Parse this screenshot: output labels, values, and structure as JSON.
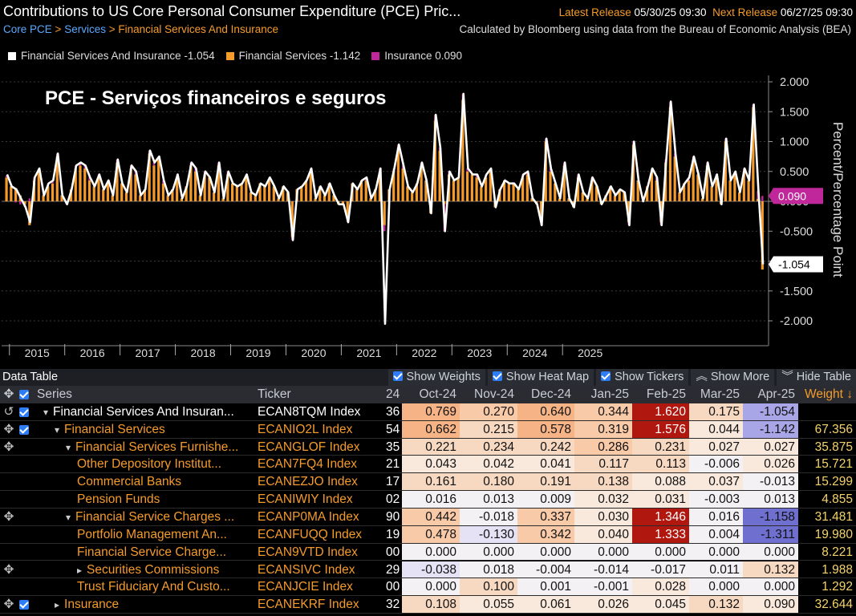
{
  "header": {
    "title": "Contributions to US Core Personal Consumer Expenditure (PCE) Pric...",
    "latest_label": "Latest Release",
    "latest_value": "05/30/25 09:30",
    "next_label": "Next Release",
    "next_value": "06/27/25 09:30",
    "breadcrumb": [
      "Core PCE",
      "Services",
      "Financial Services And Insurance"
    ],
    "source": "Calculated by Bloomberg using data from the Bureau of Economic Analysis (BEA)"
  },
  "legend": [
    {
      "label": "Financial Services And Insurance -1.054",
      "color": "#ffffff"
    },
    {
      "label": "Financial Services -1.142",
      "color": "#f59b2b"
    },
    {
      "label": "Insurance 0.090",
      "color": "#c0279a"
    }
  ],
  "chart_data": {
    "type": "bar",
    "title": "PCE - Serviços financeiros e seguros",
    "ylabel": "Percent/Percentage Point",
    "ylim": [
      -2.5,
      2.2
    ],
    "yticks": [
      "2.000",
      "1.500",
      "1.000",
      "0.500",
      "0.000",
      "-0.500",
      "-1.000",
      "-1.500",
      "-2.000"
    ],
    "ytick_values": [
      2,
      1.5,
      1,
      0.5,
      0,
      -0.5,
      -1,
      -1.5,
      -2
    ],
    "xticks": [
      "2015",
      "2016",
      "2017",
      "2018",
      "2019",
      "2020",
      "2021",
      "2022",
      "2023",
      "2024",
      "2025"
    ],
    "months_start": "2014-12",
    "series": [
      {
        "name": "Financial Services And Insurance",
        "kind": "line",
        "color": "#ffffff",
        "values": [
          0.45,
          0.25,
          0.2,
          0.05,
          -0.1,
          -0.35,
          0.4,
          0.55,
          0.1,
          0.3,
          0.35,
          0.8,
          0.1,
          -0.05,
          0.2,
          0.6,
          0.65,
          0.6,
          0.4,
          0.25,
          0.45,
          0.2,
          0.35,
          0.1,
          0.7,
          0.3,
          0.15,
          0.6,
          0.5,
          0.1,
          0.2,
          0.85,
          0.65,
          0.75,
          0.35,
          0.1,
          0.2,
          0.45,
          0.05,
          0.25,
          0.65,
          0.55,
          0.1,
          0.5,
          0.4,
          0.15,
          0.65,
          0.05,
          0.5,
          0.3,
          0.25,
          0.3,
          0.45,
          0.15,
          0.1,
          0.3,
          0.25,
          0.4,
          0.25,
          0.05,
          0.25,
          0.15,
          -0.65,
          0.2,
          0.25,
          0.35,
          0.55,
          0.05,
          0.25,
          0.1,
          0.3,
          0.1,
          -0.05,
          -0.05,
          -0.35,
          0.3,
          0.2,
          0.35,
          0.4,
          0.05,
          0.2,
          0.55,
          -2.05,
          0.2,
          0.55,
          0.95,
          0.6,
          0.25,
          0.15,
          0.3,
          0.65,
          0.35,
          -0.2,
          1.45,
          0.9,
          -0.5,
          0.5,
          0.35,
          0.4,
          1.8,
          0.55,
          0.45,
          0.45,
          0.25,
          0.45,
          0.55,
          -0.1,
          0.2,
          0.35,
          0.3,
          0.3,
          0.2,
          0.45,
          0.5,
          0.05,
          -0.05,
          -0.4,
          1.05,
          0.55,
          0.3,
          0.05,
          0.65,
          0.05,
          -0.1,
          0.45,
          0.15,
          0.05,
          0.4,
          0.25,
          -0.05,
          0.1,
          0.25,
          0.1,
          0.2,
          0.15,
          -0.4,
          1.0,
          0.35,
          0.0,
          0.25,
          0.55,
          0.4,
          -0.4,
          0.7,
          1.67,
          0.8,
          0.15,
          0.3,
          0.4,
          0.75,
          0.45,
          0.05,
          0.65,
          0.25,
          0.45,
          -0.05,
          1.05,
          0.35,
          0.5,
          0.15,
          0.55,
          0.35,
          1.62,
          0.18,
          -1.054
        ]
      },
      {
        "name": "Financial Services",
        "kind": "bar",
        "color": "#f59b2b",
        "values": [
          0.4,
          0.25,
          0.22,
          0.1,
          -0.05,
          -0.4,
          0.35,
          0.5,
          0.1,
          0.25,
          0.3,
          0.75,
          0.1,
          0.0,
          0.2,
          0.55,
          0.6,
          0.55,
          0.35,
          0.25,
          0.4,
          0.2,
          0.3,
          0.1,
          0.65,
          0.3,
          0.15,
          0.55,
          0.45,
          0.1,
          0.2,
          0.8,
          0.6,
          0.7,
          0.3,
          0.1,
          0.2,
          0.4,
          0.05,
          0.25,
          0.6,
          0.5,
          0.1,
          0.45,
          0.4,
          0.15,
          0.6,
          0.05,
          0.45,
          0.3,
          0.25,
          0.3,
          0.4,
          0.15,
          0.1,
          0.3,
          0.25,
          0.35,
          0.25,
          0.05,
          0.25,
          0.15,
          -0.6,
          0.2,
          0.25,
          0.35,
          0.5,
          0.05,
          0.25,
          0.1,
          0.3,
          0.1,
          -0.05,
          -0.05,
          -0.3,
          0.3,
          0.2,
          0.35,
          0.35,
          0.05,
          0.2,
          0.5,
          -0.4,
          0.2,
          0.5,
          0.9,
          0.55,
          0.25,
          0.15,
          0.3,
          0.6,
          0.35,
          -0.2,
          1.35,
          0.85,
          -0.05,
          0.45,
          0.35,
          0.4,
          1.7,
          0.5,
          0.45,
          0.4,
          0.25,
          0.4,
          0.5,
          -0.1,
          0.2,
          0.35,
          0.3,
          0.3,
          0.2,
          0.4,
          0.45,
          0.05,
          -0.05,
          -0.35,
          1.0,
          0.5,
          0.3,
          0.05,
          0.6,
          0.05,
          -0.1,
          0.4,
          0.15,
          0.05,
          0.35,
          0.25,
          -0.05,
          0.1,
          0.25,
          0.1,
          0.2,
          0.15,
          -0.35,
          0.95,
          0.35,
          0.0,
          0.25,
          0.5,
          0.35,
          -0.35,
          0.65,
          1.576,
          0.75,
          0.15,
          0.3,
          0.35,
          0.7,
          0.45,
          0.05,
          0.6,
          0.25,
          0.4,
          -0.05,
          1.0,
          0.35,
          0.45,
          0.15,
          0.5,
          0.35,
          1.576,
          0.044,
          -1.142
        ]
      },
      {
        "name": "Insurance",
        "kind": "bar",
        "color": "#c0279a",
        "values": [
          0.03,
          0.0,
          -0.02,
          -0.05,
          -0.05,
          0.05,
          0.05,
          0.05,
          0.0,
          0.05,
          0.05,
          0.05,
          0.0,
          -0.05,
          0.0,
          0.05,
          0.05,
          0.05,
          0.05,
          0.0,
          0.05,
          0.0,
          0.05,
          0.0,
          0.05,
          0.0,
          0.0,
          0.05,
          0.05,
          0.0,
          0.0,
          0.05,
          0.05,
          0.05,
          0.05,
          0.0,
          0.0,
          0.05,
          0.0,
          0.0,
          0.05,
          0.05,
          0.0,
          0.05,
          0.0,
          0.0,
          0.05,
          0.0,
          0.05,
          0.0,
          0.0,
          0.0,
          0.05,
          0.0,
          0.0,
          0.0,
          0.0,
          0.05,
          0.0,
          0.0,
          0.0,
          0.0,
          -0.05,
          0.0,
          0.0,
          0.0,
          0.05,
          0.0,
          0.0,
          0.0,
          0.0,
          0.0,
          0.0,
          0.0,
          -0.05,
          0.0,
          0.0,
          0.0,
          0.05,
          0.0,
          0.0,
          0.05,
          -0.1,
          0.0,
          0.05,
          0.05,
          0.05,
          0.0,
          0.0,
          0.0,
          0.05,
          0.0,
          0.0,
          0.1,
          0.05,
          -0.45,
          0.05,
          0.0,
          0.0,
          0.1,
          0.05,
          0.0,
          0.05,
          0.0,
          0.05,
          0.05,
          0.0,
          0.0,
          0.0,
          0.0,
          0.0,
          0.0,
          0.05,
          0.05,
          0.0,
          0.0,
          -0.05,
          0.05,
          0.05,
          0.0,
          0.0,
          0.05,
          0.0,
          0.0,
          0.05,
          0.0,
          0.0,
          0.05,
          0.0,
          0.0,
          0.0,
          0.0,
          0.0,
          0.0,
          0.0,
          -0.05,
          0.05,
          0.0,
          0.0,
          0.0,
          0.05,
          0.05,
          -0.05,
          0.05,
          0.09,
          0.05,
          0.0,
          0.0,
          0.05,
          0.05,
          0.0,
          0.0,
          0.05,
          0.0,
          0.05,
          0.0,
          0.05,
          0.0,
          0.05,
          0.0,
          0.05,
          0.0,
          0.045,
          0.132,
          0.09
        ]
      }
    ],
    "last_labels": [
      {
        "text": "0.090",
        "value": 0.09,
        "bg": "#c0279a",
        "fg": "#ffffff"
      },
      {
        "text": "-1.054",
        "value": -1.054,
        "bg": "#ffffff",
        "fg": "#000000"
      }
    ]
  },
  "table": {
    "title": "Data Table",
    "buttons": [
      {
        "label": "Show Weights",
        "checked": true
      },
      {
        "label": "Show Heat Map",
        "checked": true
      },
      {
        "label": "Show Tickers",
        "checked": true
      },
      {
        "label": "Show More",
        "checked": false,
        "icon": "chevrons-up-icon"
      },
      {
        "label": "Hide Table",
        "checked": false,
        "icon": "chevrons-down-icon"
      }
    ],
    "columns": {
      "series": "Series",
      "ticker": "Ticker",
      "partial": "24",
      "months": [
        "Oct-24",
        "Nov-24",
        "Dec-24",
        "Jan-25",
        "Feb-25",
        "Mar-25",
        "Apr-25"
      ],
      "weight": "Weight ↓"
    },
    "rows": [
      {
        "ctl": "↺",
        "chk": true,
        "indent": 0,
        "arrow": "▾",
        "series": "Financial Services And Insuran...",
        "ticker": "ECAN8TQM Index",
        "partial": "36",
        "values": [
          "0.769",
          "0.270",
          "0.640",
          "0.344",
          "1.620",
          "0.175",
          "-1.054"
        ],
        "weight": ""
      },
      {
        "ctl": "✥",
        "chk": true,
        "indent": 1,
        "arrow": "▾",
        "series": "Financial Services",
        "ticker": "ECANIO2L Index",
        "partial": "54",
        "values": [
          "0.662",
          "0.215",
          "0.578",
          "0.319",
          "1.576",
          "0.044",
          "-1.142"
        ],
        "weight": "67.356"
      },
      {
        "ctl": "✥",
        "chk": false,
        "indent": 2,
        "arrow": "▾",
        "series": "Financial Services Furnishe...",
        "ticker": "ECANGLOF Index",
        "partial": "35",
        "values": [
          "0.221",
          "0.234",
          "0.242",
          "0.286",
          "0.231",
          "0.027",
          "0.027"
        ],
        "weight": "35.875"
      },
      {
        "ctl": "",
        "chk": false,
        "indent": 3,
        "arrow": "",
        "series": "Other Depository Institut...",
        "ticker": "ECAN7FQ4 Index",
        "partial": "21",
        "values": [
          "0.043",
          "0.042",
          "0.041",
          "0.117",
          "0.113",
          "-0.006",
          "0.026"
        ],
        "weight": "15.721"
      },
      {
        "ctl": "",
        "chk": false,
        "indent": 3,
        "arrow": "",
        "series": "Commercial Banks",
        "ticker": "ECANEZJO Index",
        "partial": "17",
        "values": [
          "0.161",
          "0.180",
          "0.191",
          "0.138",
          "0.088",
          "0.037",
          "-0.013"
        ],
        "weight": "15.299"
      },
      {
        "ctl": "",
        "chk": false,
        "indent": 3,
        "arrow": "",
        "series": "Pension Funds",
        "ticker": "ECANIWIY Index",
        "partial": "02",
        "values": [
          "0.016",
          "0.013",
          "0.009",
          "0.032",
          "0.031",
          "-0.003",
          "0.013"
        ],
        "weight": "4.855"
      },
      {
        "ctl": "✥",
        "chk": false,
        "indent": 2,
        "arrow": "▾",
        "series": "Financial Service Charges ...",
        "ticker": "ECANP0MA Index",
        "partial": "90",
        "values": [
          "0.442",
          "-0.018",
          "0.337",
          "0.030",
          "1.346",
          "0.016",
          "-1.158"
        ],
        "weight": "31.481"
      },
      {
        "ctl": "",
        "chk": false,
        "indent": 3,
        "arrow": "",
        "series": "Portfolio Management An...",
        "ticker": "ECANFUQQ Index",
        "partial": "19",
        "values": [
          "0.478",
          "-0.130",
          "0.342",
          "0.040",
          "1.333",
          "0.004",
          "-1.311"
        ],
        "weight": "19.980"
      },
      {
        "ctl": "",
        "chk": false,
        "indent": 3,
        "arrow": "",
        "series": "Financial Service Charge...",
        "ticker": "ECAN9VTD Index",
        "partial": "00",
        "values": [
          "0.000",
          "0.000",
          "0.000",
          "0.000",
          "0.000",
          "0.000",
          "0.000"
        ],
        "weight": "8.221"
      },
      {
        "ctl": "✥",
        "chk": false,
        "indent": 3,
        "arrow": "▸",
        "series": "Securities Commissions",
        "ticker": "ECANSIVC Index",
        "partial": "29",
        "values": [
          "-0.038",
          "0.018",
          "-0.004",
          "-0.014",
          "-0.017",
          "0.011",
          "0.132"
        ],
        "weight": "1.988"
      },
      {
        "ctl": "",
        "chk": false,
        "indent": 3,
        "arrow": "",
        "series": "Trust Fiduciary And Custo...",
        "ticker": "ECANJCIE Index",
        "partial": "00",
        "values": [
          "0.000",
          "0.100",
          "0.001",
          "-0.001",
          "0.028",
          "0.000",
          "0.000"
        ],
        "weight": "1.292"
      },
      {
        "ctl": "✥",
        "chk": true,
        "indent": 1,
        "arrow": "▸",
        "series": "Insurance",
        "ticker": "ECANEKRF Index",
        "partial": "32",
        "values": [
          "0.108",
          "0.055",
          "0.061",
          "0.026",
          "0.045",
          "0.132",
          "0.090"
        ],
        "weight": "32.644"
      }
    ]
  }
}
